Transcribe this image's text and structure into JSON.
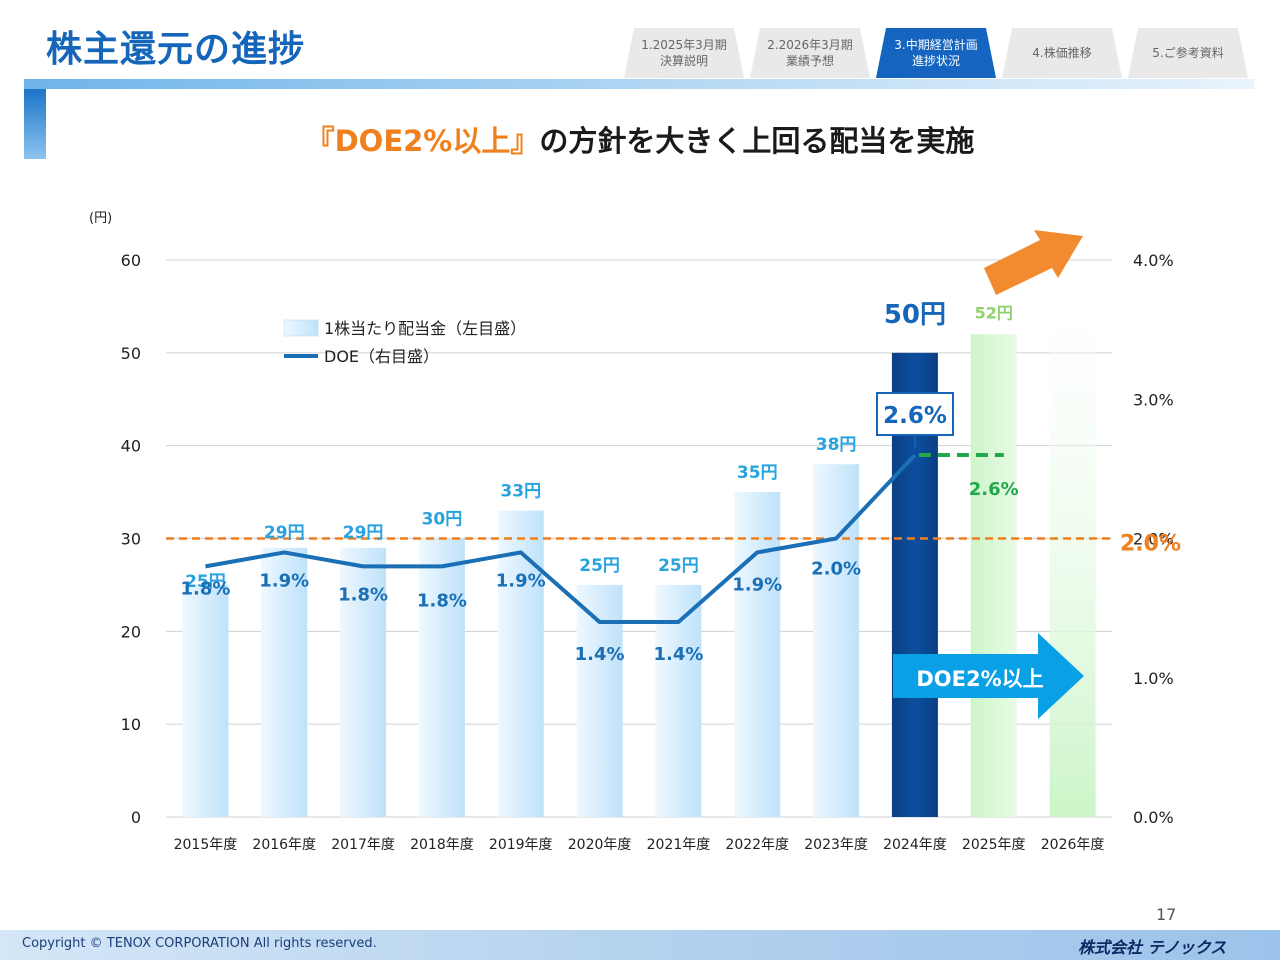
{
  "page": {
    "title": "株主還元の進捗",
    "headline_orange": "『DOE2%以上』",
    "headline_rest": "の方針を大きく上回る配当を実施",
    "page_number": "17",
    "copyright": "Copyright © TENOX CORPORATION All rights reserved.",
    "company_logo": "株式会社 テノックス"
  },
  "tabs": [
    {
      "line1": "1.2025年3月期",
      "line2": "決算説明",
      "active": false
    },
    {
      "line1": "2.2026年3月期",
      "line2": "業績予想",
      "active": false
    },
    {
      "line1": "3.中期経営計画",
      "line2": "進捗状況",
      "active": true
    },
    {
      "line1": "4.株価推移",
      "line2": "",
      "active": false
    },
    {
      "line1": "5.ご参考資料",
      "line2": "",
      "active": false
    }
  ],
  "colors": {
    "brand_blue": "#1565b8",
    "bar_light": "#bfe2fa",
    "bar_highlight": "#0d4f9e",
    "bar_forecast": "#ccf5c8",
    "doe_line": "#1a6fb5",
    "threshold": "#f07f1d",
    "forecast_green": "#22a84a",
    "arrow_cyan": "#0aa0e6"
  },
  "chart_data": {
    "type": "bar",
    "y_unit_label": "(円)",
    "categories": [
      "2015年度",
      "2016年度",
      "2017年度",
      "2018年度",
      "2019年度",
      "2020年度",
      "2021年度",
      "2022年度",
      "2023年度",
      "2024年度",
      "2025年度",
      "2026年度"
    ],
    "ylim": [
      0,
      60
    ],
    "y_ticks": [
      "0",
      "10",
      "20",
      "30",
      "40",
      "50",
      "60"
    ],
    "y2lim": [
      0,
      4.0
    ],
    "y2_ticks": [
      "0.0%",
      "1.0%",
      "2.0%",
      "3.0%",
      "4.0%"
    ],
    "series": [
      {
        "name": "1株当たり配当金（左目盛）",
        "type": "bar",
        "values": [
          25,
          29,
          29,
          30,
          33,
          25,
          25,
          35,
          38,
          50,
          52,
          null
        ],
        "labels": [
          "25円",
          "29円",
          "29円",
          "30円",
          "33円",
          "25円",
          "25円",
          "35円",
          "38円",
          "50円",
          "52円",
          ""
        ]
      },
      {
        "name": "DOE（右目盛）",
        "type": "line",
        "axis": "right",
        "values": [
          1.8,
          1.9,
          1.8,
          1.8,
          1.9,
          1.4,
          1.4,
          1.9,
          2.0,
          2.6,
          2.6,
          null
        ],
        "labels": [
          "1.8%",
          "1.9%",
          "1.8%",
          "1.8%",
          "1.9%",
          "1.4%",
          "1.4%",
          "1.9%",
          "2.0%",
          "2.6%",
          "2.6%",
          ""
        ]
      }
    ],
    "threshold": {
      "value": 2.0,
      "label": "2.0%"
    },
    "annotations": {
      "doe_target_arrow": "DOE2%以上",
      "doe_2024_box": "2.6%"
    },
    "grid": true,
    "legend": "top-left"
  }
}
